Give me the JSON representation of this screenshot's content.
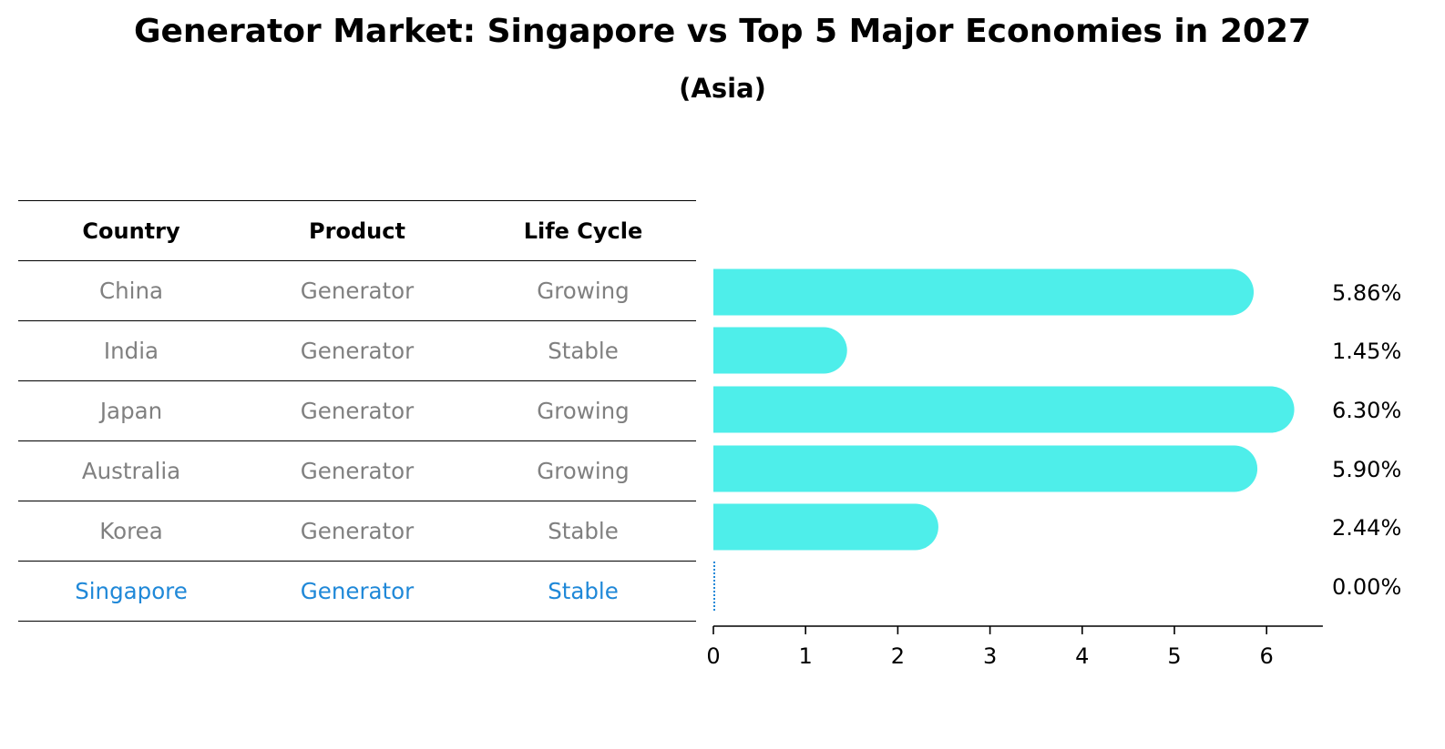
{
  "title": "Generator Market: Singapore vs Top 5 Major Economies in 2027",
  "subtitle": "(Asia)",
  "table": {
    "headers": [
      "Country",
      "Product",
      "Life Cycle"
    ],
    "rows": [
      {
        "country": "China",
        "product": "Generator",
        "life_cycle": "Growing"
      },
      {
        "country": "India",
        "product": "Generator",
        "life_cycle": "Stable"
      },
      {
        "country": "Japan",
        "product": "Generator",
        "life_cycle": "Growing"
      },
      {
        "country": "Australia",
        "product": "Generator",
        "life_cycle": "Growing"
      },
      {
        "country": "Korea",
        "product": "Generator",
        "life_cycle": "Stable"
      },
      {
        "country": "Singapore",
        "product": "Generator",
        "life_cycle": "Stable"
      }
    ],
    "highlight_row": "Singapore",
    "text_color": "#808080",
    "highlight_color": "#1f88d8"
  },
  "chart_data": {
    "type": "bar",
    "orientation": "horizontal",
    "categories": [
      "China",
      "India",
      "Japan",
      "Australia",
      "Korea",
      "Singapore"
    ],
    "values": [
      5.86,
      1.45,
      6.3,
      5.9,
      2.44,
      0.0
    ],
    "value_labels": [
      "5.86%",
      "1.45%",
      "6.30%",
      "5.90%",
      "2.44%",
      "0.00%"
    ],
    "xticks": [
      0,
      1,
      2,
      3,
      4,
      5,
      6
    ],
    "xlim": [
      0,
      6.6
    ],
    "bar_color": "#4eeeea",
    "zero_marker_color": "#1f88d8",
    "grid": false
  }
}
